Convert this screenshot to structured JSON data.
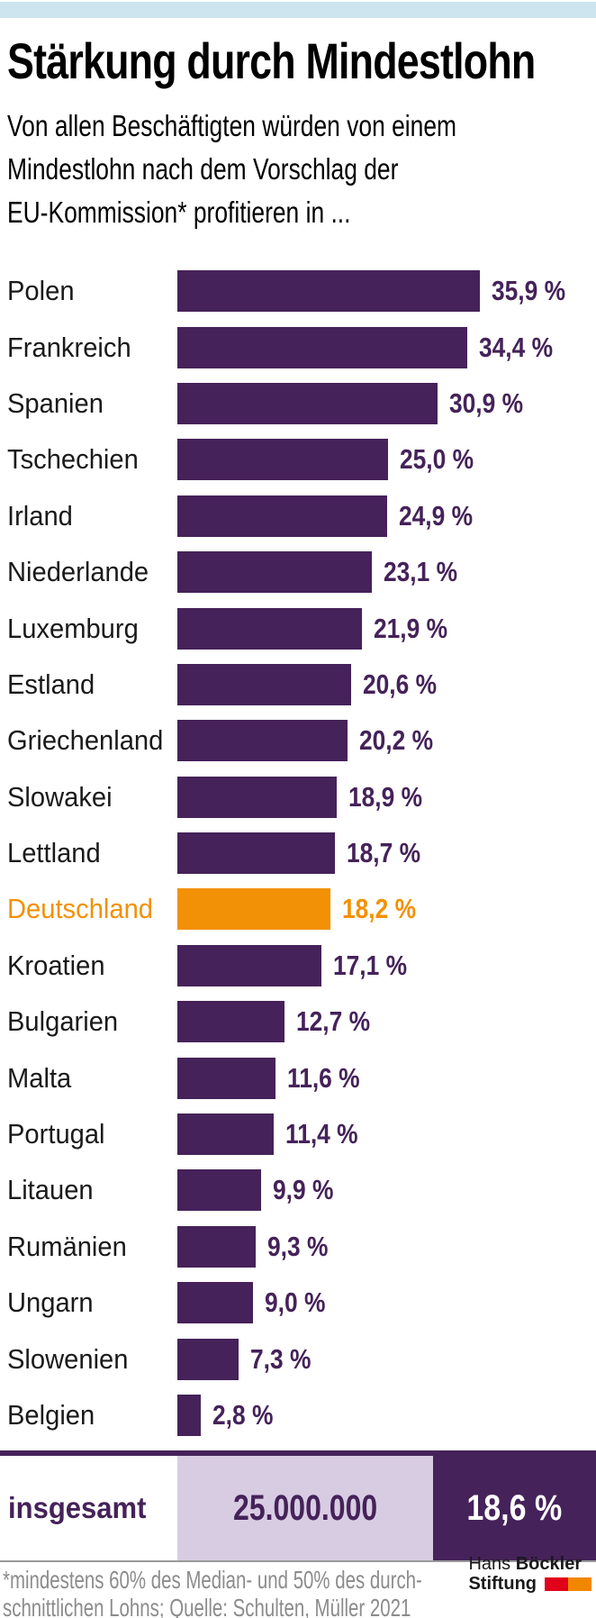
{
  "page": {
    "background": "#ffffff",
    "top_strip_color": "#cde5ef"
  },
  "chart_data": {
    "type": "bar",
    "orientation": "horizontal",
    "title": "Stärkung durch Mindestlohn",
    "subtitle": "Von allen Beschäftigten würden von einem Mindestlohn nach dem Vorschlag der EU-Kommission* profitieren in ...",
    "subtitle_lines": [
      "Von allen Beschäftigten würden von einem",
      "Mindestlohn nach dem Vorschlag der",
      "EU-Kommission* profitieren in ..."
    ],
    "categories": [
      "Polen",
      "Frankreich",
      "Spanien",
      "Tschechien",
      "Irland",
      "Niederlande",
      "Luxemburg",
      "Estland",
      "Griechenland",
      "Slowakei",
      "Lettland",
      "Deutschland",
      "Kroatien",
      "Bulgarien",
      "Malta",
      "Portugal",
      "Litauen",
      "Rumänien",
      "Ungarn",
      "Slowenien",
      "Belgien"
    ],
    "values": [
      35.9,
      34.4,
      30.9,
      25.0,
      24.9,
      23.1,
      21.9,
      20.6,
      20.2,
      18.9,
      18.7,
      18.2,
      17.1,
      12.7,
      11.6,
      11.4,
      9.9,
      9.3,
      9.0,
      7.3,
      2.8
    ],
    "value_labels": [
      "35,9 %",
      "34,4 %",
      "30,9 %",
      "25,0 %",
      "24,9 %",
      "23,1 %",
      "21,9 %",
      "20,6 %",
      "20,2 %",
      "18,9 %",
      "18,7 %",
      "18,2 %",
      "17,1 %",
      "12,7 %",
      "11,6 %",
      "11,4 %",
      "9,9 %",
      "9,3 %",
      "9,0 %",
      "7,3 %",
      "2,8 %"
    ],
    "unit": "%",
    "xlim": [
      0,
      35.9
    ],
    "grid": false,
    "legend": false,
    "bar_color": "#452259",
    "value_color": "#452259",
    "label_color": "#1a1a1a",
    "highlight_category": "Deutschland",
    "highlight_color": "#f29105",
    "total_row": {
      "label": "insgesamt",
      "count": "25.000.000",
      "percent": "18,6 %",
      "label_bg": "#ffffff",
      "count_bg": "#d8cce3",
      "percent_bg": "#452259"
    }
  },
  "footnote": {
    "lines": [
      "*mindestens 60% des Median- und 50% des durch-",
      "schnittlichen Lohns; Quelle: Schulten, Müller 2021"
    ],
    "color": "#8c8c8c"
  },
  "logo": {
    "name_regular": "Hans",
    "name_bold": "Böckler",
    "line2_bold": "Stiftung",
    "red": "#e2001a",
    "orange": "#f18700"
  }
}
